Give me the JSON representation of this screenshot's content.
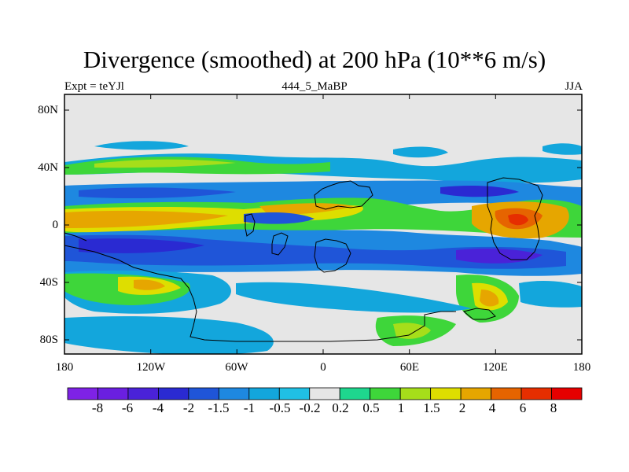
{
  "title": "Divergence (smoothed) at 200 hPa (10**6 m/s)",
  "subtitle_left": "Expt = teYJl",
  "subtitle_center": "444_5_MaBP",
  "subtitle_right": "JJA",
  "lat_labels": [
    "80N",
    "40N",
    "0",
    "40S",
    "80S"
  ],
  "lon_labels": [
    "180",
    "120W",
    "60W",
    "0",
    "60E",
    "120E",
    "180"
  ],
  "colorbar": {
    "labels": [
      "-8",
      "-6",
      "-4",
      "-2",
      "-1.5",
      "-1",
      "-0.5",
      "-0.2",
      "0.2",
      "0.5",
      "1",
      "1.5",
      "2",
      "4",
      "6",
      "8"
    ],
    "colors": [
      "#7e22e6",
      "#6a1fe0",
      "#4a22d8",
      "#2a2ad2",
      "#1f55d8",
      "#1e88e0",
      "#13a6dc",
      "#20c0e4",
      "#e6e6e6",
      "#1ed68e",
      "#3ed63a",
      "#a6de1a",
      "#dede00",
      "#e6a600",
      "#e66400",
      "#e62e00",
      "#e60000"
    ]
  },
  "map": {
    "background_color": "#e6e6e6",
    "units": "10**6 m/s",
    "level": "200 hPa",
    "season": "JJA"
  }
}
